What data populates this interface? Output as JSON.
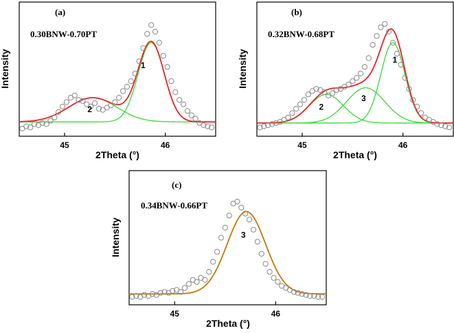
{
  "chart_data": [
    {
      "type": "scatter",
      "panel_label": "(a)",
      "composition": "0.30BNW-0.70PT",
      "xlabel": "2Theta (°)",
      "ylabel": "Intensity",
      "xlim": [
        44.55,
        46.5
      ],
      "ylim": [
        0,
        100
      ],
      "xticks": [
        45,
        46
      ],
      "baseline": 8,
      "components": [
        {
          "label": "2",
          "center": 45.28,
          "amplitude": 22,
          "sigma": 0.24,
          "color": "#33dd33",
          "label_x": 45.25,
          "label_y": 17
        },
        {
          "label": "1",
          "center": 45.86,
          "amplitude": 72,
          "sigma": 0.13,
          "color": "#33dd33",
          "label_x": 45.78,
          "label_y": 57
        }
      ],
      "envelope_color": "#ee2222",
      "scatter": {
        "x": [
          44.58,
          44.62,
          44.66,
          44.7,
          44.74,
          44.78,
          44.82,
          44.86,
          44.9,
          44.94,
          44.98,
          45.02,
          45.06,
          45.1,
          45.14,
          45.18,
          45.22,
          45.26,
          45.3,
          45.34,
          45.38,
          45.42,
          45.46,
          45.5,
          45.54,
          45.58,
          45.62,
          45.66,
          45.7,
          45.74,
          45.78,
          45.82,
          45.86,
          45.9,
          45.94,
          45.98,
          46.02,
          46.06,
          46.1,
          46.14,
          46.18,
          46.22,
          46.26,
          46.3,
          46.34,
          46.38,
          46.42,
          46.46
        ],
        "y": [
          2,
          4,
          3,
          6,
          5,
          7,
          6,
          9,
          12,
          17,
          22,
          26,
          30,
          32,
          28,
          27,
          24,
          22,
          25,
          20,
          19,
          21,
          23,
          26,
          30,
          36,
          40,
          45,
          52,
          63,
          75,
          88,
          96,
          90,
          80,
          68,
          58,
          45,
          35,
          28,
          24,
          18,
          14,
          11,
          7,
          5,
          4,
          3
        ]
      }
    },
    {
      "type": "scatter",
      "panel_label": "(b)",
      "composition": "0.32BNW-0.68PT",
      "xlabel": "2Theta (°)",
      "ylabel": "Intensity",
      "xlim": [
        44.55,
        46.5
      ],
      "ylim": [
        0,
        100
      ],
      "xticks": [
        45,
        46
      ],
      "baseline": 7,
      "components": [
        {
          "label": "2",
          "center": 45.24,
          "amplitude": 26,
          "sigma": 0.17,
          "color": "#33dd33",
          "label_x": 45.19,
          "label_y": 19
        },
        {
          "label": "3",
          "center": 45.63,
          "amplitude": 32,
          "sigma": 0.19,
          "color": "#33dd33",
          "label_x": 45.61,
          "label_y": 27
        },
        {
          "label": "1",
          "center": 45.9,
          "amplitude": 73,
          "sigma": 0.12,
          "color": "#33dd33",
          "label_x": 45.92,
          "label_y": 62
        }
      ],
      "envelope_color": "#ee2222",
      "scatter": {
        "x": [
          44.58,
          44.62,
          44.66,
          44.7,
          44.74,
          44.78,
          44.82,
          44.86,
          44.9,
          44.94,
          44.98,
          45.02,
          45.06,
          45.1,
          45.14,
          45.18,
          45.22,
          45.26,
          45.3,
          45.34,
          45.38,
          45.42,
          45.46,
          45.5,
          45.54,
          45.58,
          45.62,
          45.66,
          45.7,
          45.74,
          45.78,
          45.82,
          45.86,
          45.9,
          45.94,
          45.98,
          46.02,
          46.06,
          46.1,
          46.14,
          46.18,
          46.22,
          46.26,
          46.3,
          46.34,
          46.38,
          46.42,
          46.46
        ],
        "y": [
          3,
          4,
          5,
          6,
          7,
          8,
          10,
          12,
          16,
          20,
          24,
          28,
          33,
          36,
          38,
          37,
          35,
          32,
          34,
          37,
          38,
          40,
          42,
          45,
          48,
          52,
          58,
          66,
          78,
          86,
          94,
          97,
          90,
          80,
          70,
          60,
          48,
          38,
          28,
          22,
          16,
          12,
          10,
          8,
          6,
          5,
          4,
          3
        ]
      }
    },
    {
      "type": "scatter",
      "panel_label": "(c)",
      "composition": "0.34BNW-0.66PT",
      "xlabel": "2Theta (°)",
      "ylabel": "Intensity",
      "xlim": [
        44.55,
        46.5
      ],
      "ylim": [
        0,
        100
      ],
      "xticks": [
        45,
        46
      ],
      "baseline": 6,
      "components": [
        {
          "label": "3",
          "center": 45.71,
          "amplitude": 82,
          "sigma": 0.19,
          "color": "#33dd33",
          "label_x": 45.68,
          "label_y": 62
        }
      ],
      "envelope_color": "#cc7700",
      "scatter": {
        "x": [
          44.58,
          44.62,
          44.66,
          44.7,
          44.74,
          44.78,
          44.82,
          44.86,
          44.9,
          44.94,
          44.98,
          45.02,
          45.06,
          45.1,
          45.14,
          45.18,
          45.22,
          45.26,
          45.3,
          45.34,
          45.38,
          45.42,
          45.46,
          45.5,
          45.54,
          45.58,
          45.62,
          45.66,
          45.7,
          45.74,
          45.78,
          45.82,
          45.86,
          45.9,
          45.94,
          45.98,
          46.02,
          46.06,
          46.1,
          46.14,
          46.18,
          46.22,
          46.26,
          46.3,
          46.34,
          46.38,
          46.42,
          46.46
        ],
        "y": [
          3,
          4,
          3,
          5,
          4,
          6,
          5,
          7,
          8,
          7,
          9,
          10,
          8,
          12,
          16,
          20,
          18,
          22,
          20,
          28,
          38,
          48,
          62,
          72,
          84,
          96,
          98,
          92,
          86,
          80,
          70,
          58,
          46,
          36,
          28,
          22,
          18,
          14,
          12,
          10,
          8,
          7,
          6,
          5,
          4,
          4,
          3,
          3
        ]
      }
    }
  ]
}
